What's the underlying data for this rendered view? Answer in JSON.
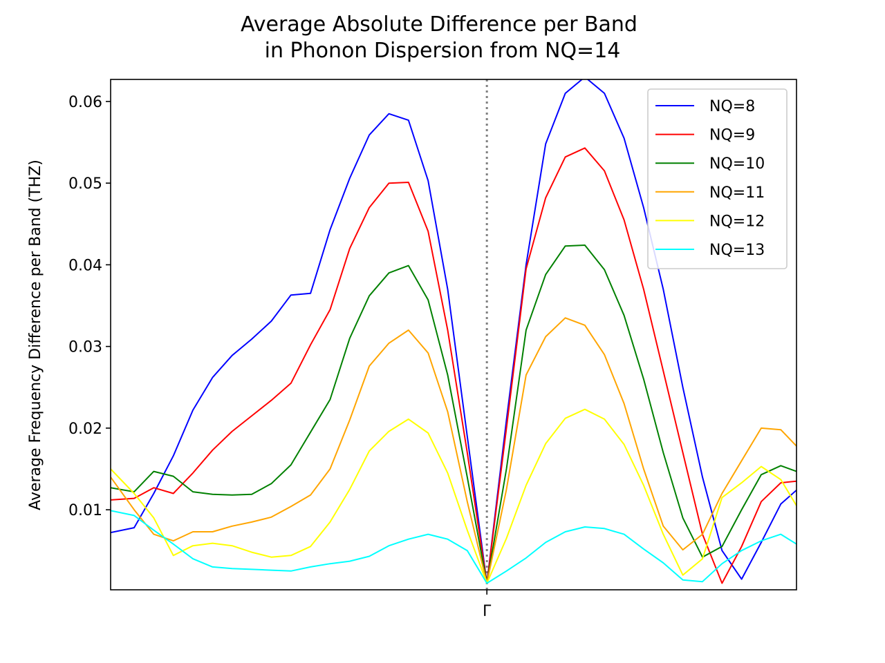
{
  "chart_data": {
    "type": "line",
    "title": "Average Absolute Difference per Band",
    "subtitle": "in Phonon Dispersion from NQ=14",
    "xlabel": "",
    "ylabel": "Average Frequency Difference per Band (THZ)",
    "xlim": [
      0,
      35
    ],
    "ylim": [
      0.0002,
      0.0627
    ],
    "x_tick_positions": [
      19.2
    ],
    "x_tick_labels": [
      "Γ"
    ],
    "yticks": [
      0.01,
      0.02,
      0.03,
      0.04,
      0.05,
      0.06
    ],
    "ytick_labels": [
      "0.01",
      "0.02",
      "0.03",
      "0.04",
      "0.05",
      "0.06"
    ],
    "vline_x": 19.2,
    "grid": false,
    "legend_position": "top-right",
    "x": [
      0,
      1.2,
      2.2,
      3.2,
      4.2,
      5.2,
      6.2,
      7.2,
      8.2,
      9.2,
      10.2,
      11.2,
      12.2,
      13.2,
      14.2,
      15.2,
      16.2,
      17.2,
      18.2,
      19.2,
      20.2,
      21.2,
      22.2,
      23.2,
      24.2,
      25.2,
      26.2,
      27.2,
      28.2,
      29.2,
      30.2,
      31.2,
      32.2,
      33.2,
      34.2,
      35
    ],
    "series": [
      {
        "name": "NQ=8",
        "color": "#0000ff",
        "values": [
          0.0072,
          0.0078,
          0.012,
          0.0166,
          0.0222,
          0.0262,
          0.0289,
          0.0309,
          0.0331,
          0.0363,
          0.0365,
          0.0443,
          0.0506,
          0.0559,
          0.0585,
          0.0577,
          0.0503,
          0.037,
          0.019,
          0.001,
          0.021,
          0.04,
          0.0548,
          0.061,
          0.063,
          0.061,
          0.0555,
          0.047,
          0.037,
          0.025,
          0.014,
          0.005,
          0.0015,
          0.006,
          0.0107,
          0.0124
        ]
      },
      {
        "name": "NQ=9",
        "color": "#ff0000",
        "values": [
          0.0112,
          0.0114,
          0.0127,
          0.012,
          0.0145,
          0.0173,
          0.0196,
          0.0215,
          0.0234,
          0.0255,
          0.0302,
          0.0345,
          0.042,
          0.047,
          0.05,
          0.0501,
          0.0441,
          0.032,
          0.017,
          0.001,
          0.02,
          0.0395,
          0.0482,
          0.0532,
          0.0543,
          0.0515,
          0.0455,
          0.037,
          0.027,
          0.017,
          0.007,
          0.001,
          0.0055,
          0.011,
          0.0133,
          0.0135
        ]
      },
      {
        "name": "NQ=10",
        "color": "#008000",
        "values": [
          0.0127,
          0.0122,
          0.0147,
          0.0141,
          0.0122,
          0.0119,
          0.0118,
          0.0119,
          0.0132,
          0.0155,
          0.0195,
          0.0235,
          0.031,
          0.0362,
          0.039,
          0.0399,
          0.0357,
          0.0265,
          0.014,
          0.001,
          0.015,
          0.032,
          0.0388,
          0.0423,
          0.0424,
          0.0394,
          0.0338,
          0.026,
          0.017,
          0.009,
          0.0042,
          0.0055,
          0.01,
          0.0143,
          0.0154,
          0.0147
        ]
      },
      {
        "name": "NQ=11",
        "color": "#ffa500",
        "values": [
          0.014,
          0.01,
          0.007,
          0.0062,
          0.0073,
          0.0073,
          0.008,
          0.0085,
          0.0091,
          0.0104,
          0.0118,
          0.015,
          0.021,
          0.0276,
          0.0304,
          0.032,
          0.0292,
          0.022,
          0.011,
          0.001,
          0.0125,
          0.0265,
          0.0312,
          0.0335,
          0.0326,
          0.029,
          0.023,
          0.015,
          0.008,
          0.0051,
          0.007,
          0.012,
          0.016,
          0.02,
          0.0198,
          0.0178
        ]
      },
      {
        "name": "NQ=12",
        "color": "#ffff00",
        "values": [
          0.015,
          0.012,
          0.009,
          0.0044,
          0.0056,
          0.0059,
          0.0056,
          0.0048,
          0.0042,
          0.0044,
          0.0055,
          0.0085,
          0.0125,
          0.0172,
          0.0196,
          0.0211,
          0.0194,
          0.0145,
          0.0075,
          0.001,
          0.0065,
          0.013,
          0.0181,
          0.0212,
          0.0223,
          0.0211,
          0.018,
          0.013,
          0.007,
          0.002,
          0.004,
          0.0115,
          0.0133,
          0.0153,
          0.0137,
          0.0105
        ]
      },
      {
        "name": "NQ=13",
        "color": "#00ffff",
        "values": [
          0.0099,
          0.0093,
          0.0075,
          0.0058,
          0.004,
          0.003,
          0.0028,
          0.0027,
          0.0026,
          0.0025,
          0.003,
          0.0034,
          0.0037,
          0.0043,
          0.0056,
          0.0064,
          0.007,
          0.0064,
          0.005,
          0.001,
          0.0025,
          0.0041,
          0.006,
          0.0073,
          0.0079,
          0.0077,
          0.007,
          0.0052,
          0.0035,
          0.0014,
          0.0012,
          0.0034,
          0.005,
          0.0062,
          0.007,
          0.0058
        ]
      }
    ]
  }
}
